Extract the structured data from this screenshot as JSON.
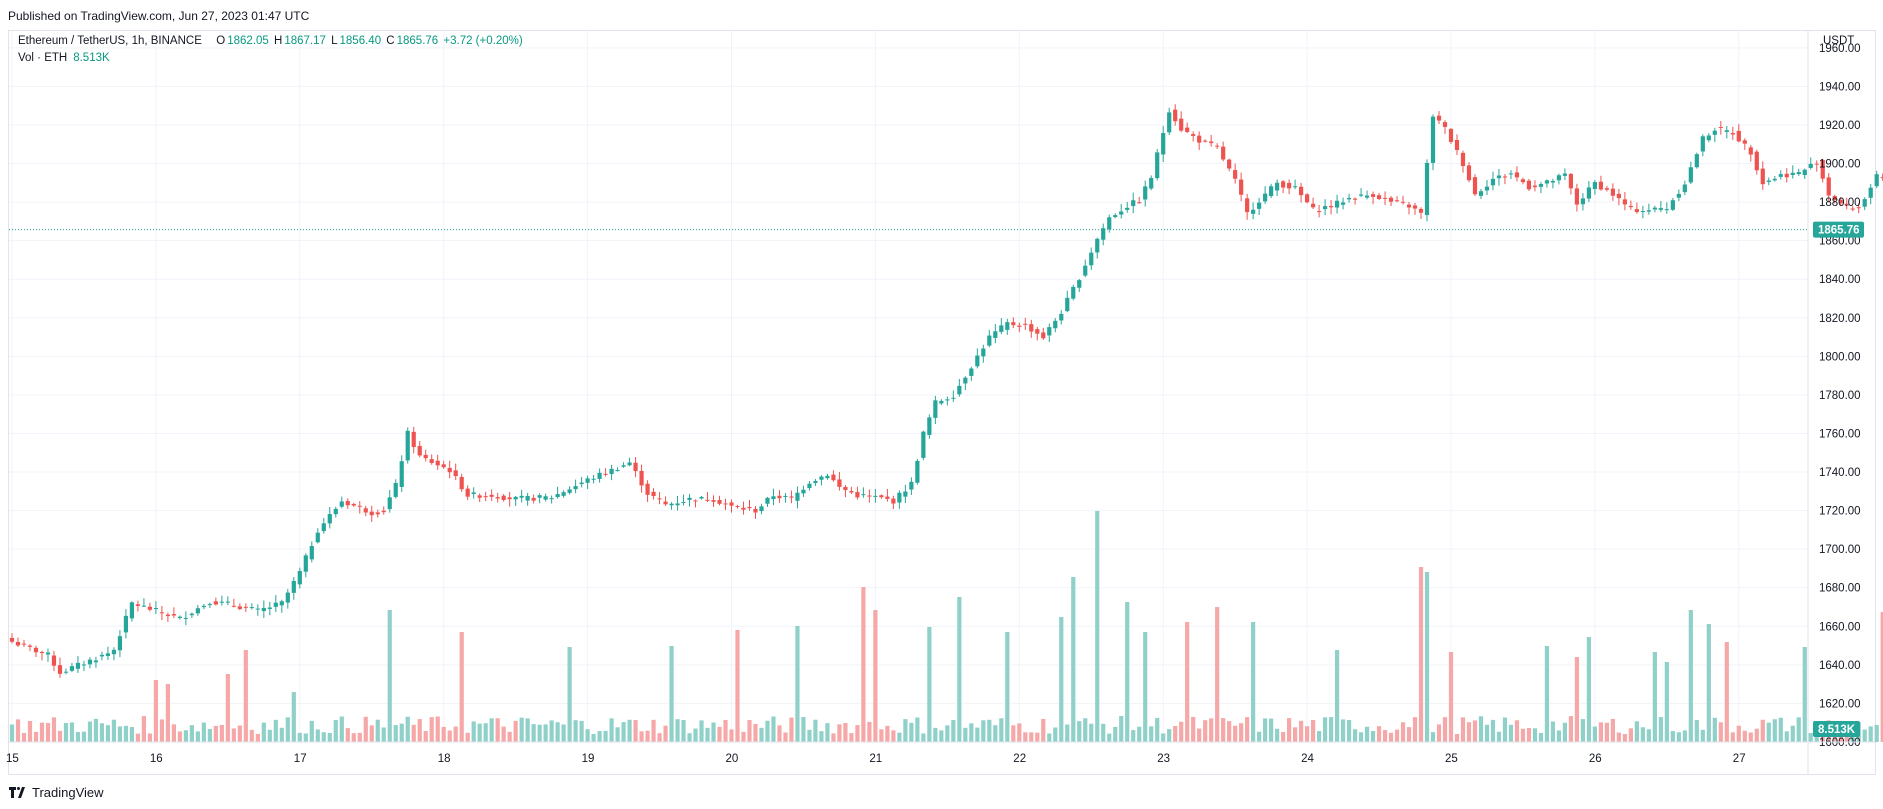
{
  "header": {
    "published": "Published on TradingView.com, Jun 27, 2023 01:47 UTC"
  },
  "legend": {
    "symbol": "Ethereum / TetherUS, 1h, BINANCE",
    "o_key": "O",
    "o": "1862.05",
    "h_key": "H",
    "h": "1867.17",
    "l_key": "L",
    "l": "1856.40",
    "c_key": "C",
    "c": "1865.76",
    "change": "+3.72 (+0.20%)",
    "vol_label": "Vol · ETH",
    "vol_value": "8.513K"
  },
  "footer": {
    "brand": "TradingView"
  },
  "colors": {
    "up": "#26a69a",
    "down": "#ef5350",
    "vol_up": "#8fd1c9",
    "vol_down": "#f5a8a7",
    "grid": "#f0f3fa",
    "badge": "#26a69a"
  },
  "chart_data": {
    "type": "candlestick",
    "interval": "1h",
    "currency": "USDT",
    "last_price": 1865.76,
    "last_price_label": "1865.76",
    "last_volume_label": "8.513K",
    "ylim": [
      1600,
      1962
    ],
    "y_ticks": [
      1600,
      1620,
      1640,
      1660,
      1680,
      1700,
      1720,
      1740,
      1760,
      1780,
      1800,
      1820,
      1840,
      1860,
      1880,
      1900,
      1920,
      1940,
      1960
    ],
    "y_tick_labels": [
      "1600.00",
      "1620.00",
      "1640.00",
      "1660.00",
      "1680.00",
      "1700.00",
      "1720.00",
      "1740.00",
      "1760.00",
      "1780.00",
      "1800.00",
      "1820.00",
      "1840.00",
      "1860.00",
      "1880.00",
      "1900.00",
      "1920.00",
      "1940.00",
      "1960.00"
    ],
    "x_labels": [
      "15",
      "16",
      "17",
      "18",
      "19",
      "20",
      "21",
      "22",
      "23",
      "24",
      "25",
      "26",
      "27"
    ],
    "close_anchors": [
      [
        0,
        1652
      ],
      [
        6,
        1645
      ],
      [
        8,
        1636
      ],
      [
        12,
        1641
      ],
      [
        16,
        1646
      ],
      [
        17,
        1648
      ],
      [
        20,
        1672
      ],
      [
        24,
        1668
      ],
      [
        28,
        1664
      ],
      [
        33,
        1673
      ],
      [
        37,
        1671
      ],
      [
        41,
        1668
      ],
      [
        45,
        1672
      ],
      [
        48,
        1688
      ],
      [
        51,
        1710
      ],
      [
        55,
        1725
      ],
      [
        60,
        1719
      ],
      [
        62,
        1720
      ],
      [
        64,
        1733
      ],
      [
        66,
        1760
      ],
      [
        68,
        1748
      ],
      [
        73,
        1741
      ],
      [
        76,
        1728
      ],
      [
        80,
        1728
      ],
      [
        84,
        1726
      ],
      [
        90,
        1727
      ],
      [
        96,
        1736
      ],
      [
        100,
        1741
      ],
      [
        103,
        1745
      ],
      [
        106,
        1729
      ],
      [
        109,
        1723
      ],
      [
        113,
        1726
      ],
      [
        117,
        1726
      ],
      [
        120,
        1722
      ],
      [
        124,
        1720
      ],
      [
        127,
        1728
      ],
      [
        130,
        1726
      ],
      [
        133,
        1735
      ],
      [
        136,
        1739
      ],
      [
        138,
        1732
      ],
      [
        141,
        1728
      ],
      [
        144,
        1727
      ],
      [
        147,
        1725
      ],
      [
        150,
        1734
      ],
      [
        152,
        1760
      ],
      [
        154,
        1776
      ],
      [
        157,
        1780
      ],
      [
        160,
        1795
      ],
      [
        163,
        1810
      ],
      [
        166,
        1817
      ],
      [
        169,
        1816
      ],
      [
        172,
        1810
      ],
      [
        175,
        1823
      ],
      [
        178,
        1841
      ],
      [
        181,
        1861
      ],
      [
        183,
        1872
      ],
      [
        186,
        1878
      ],
      [
        188,
        1881
      ],
      [
        190,
        1893
      ],
      [
        193,
        1928
      ],
      [
        195,
        1918
      ],
      [
        198,
        1912
      ],
      [
        201,
        1908
      ],
      [
        204,
        1891
      ],
      [
        206,
        1874
      ],
      [
        208,
        1881
      ],
      [
        211,
        1890
      ],
      [
        214,
        1887
      ],
      [
        217,
        1876
      ],
      [
        220,
        1878
      ],
      [
        223,
        1882
      ],
      [
        227,
        1884
      ],
      [
        230,
        1880
      ],
      [
        233,
        1878
      ],
      [
        235,
        1874
      ],
      [
        237,
        1925
      ],
      [
        239,
        1918
      ],
      [
        242,
        1900
      ],
      [
        244,
        1884
      ],
      [
        247,
        1892
      ],
      [
        250,
        1895
      ],
      [
        253,
        1888
      ],
      [
        256,
        1890
      ],
      [
        259,
        1894
      ],
      [
        261,
        1879
      ],
      [
        264,
        1890
      ],
      [
        267,
        1884
      ],
      [
        270,
        1876
      ],
      [
        273,
        1876
      ],
      [
        276,
        1877
      ],
      [
        279,
        1890
      ],
      [
        282,
        1913
      ],
      [
        284,
        1918
      ],
      [
        287,
        1916
      ],
      [
        290,
        1906
      ],
      [
        292,
        1890
      ],
      [
        295,
        1894
      ],
      [
        298,
        1895
      ],
      [
        301,
        1901
      ],
      [
        303,
        1884
      ],
      [
        306,
        1877
      ],
      [
        308,
        1877
      ],
      [
        311,
        1893
      ],
      [
        314,
        1888
      ],
      [
        317,
        1880
      ],
      [
        319,
        1885
      ],
      [
        321,
        1883
      ],
      [
        323,
        1846
      ],
      [
        325,
        1852
      ],
      [
        328,
        1853
      ],
      [
        331,
        1860
      ],
      [
        333,
        1865.76
      ]
    ],
    "volume_spikes": [
      [
        24,
        62
      ],
      [
        26,
        58
      ],
      [
        36,
        68
      ],
      [
        39,
        92
      ],
      [
        47,
        50
      ],
      [
        63,
        132
      ],
      [
        75,
        110
      ],
      [
        93,
        95
      ],
      [
        110,
        96
      ],
      [
        121,
        112
      ],
      [
        131,
        116
      ],
      [
        142,
        155
      ],
      [
        144,
        132
      ],
      [
        153,
        115
      ],
      [
        158,
        145
      ],
      [
        166,
        110
      ],
      [
        175,
        125
      ],
      [
        177,
        165
      ],
      [
        181,
        231
      ],
      [
        186,
        140
      ],
      [
        189,
        110
      ],
      [
        196,
        120
      ],
      [
        201,
        135
      ],
      [
        207,
        120
      ],
      [
        221,
        92
      ],
      [
        235,
        175
      ],
      [
        236,
        170
      ],
      [
        240,
        90
      ],
      [
        256,
        96
      ],
      [
        261,
        85
      ],
      [
        263,
        105
      ],
      [
        274,
        90
      ],
      [
        276,
        80
      ],
      [
        280,
        132
      ],
      [
        283,
        118
      ],
      [
        286,
        100
      ],
      [
        299,
        95
      ],
      [
        312,
        130
      ],
      [
        319,
        105
      ],
      [
        322,
        165
      ],
      [
        323,
        124
      ],
      [
        326,
        88
      ]
    ]
  }
}
